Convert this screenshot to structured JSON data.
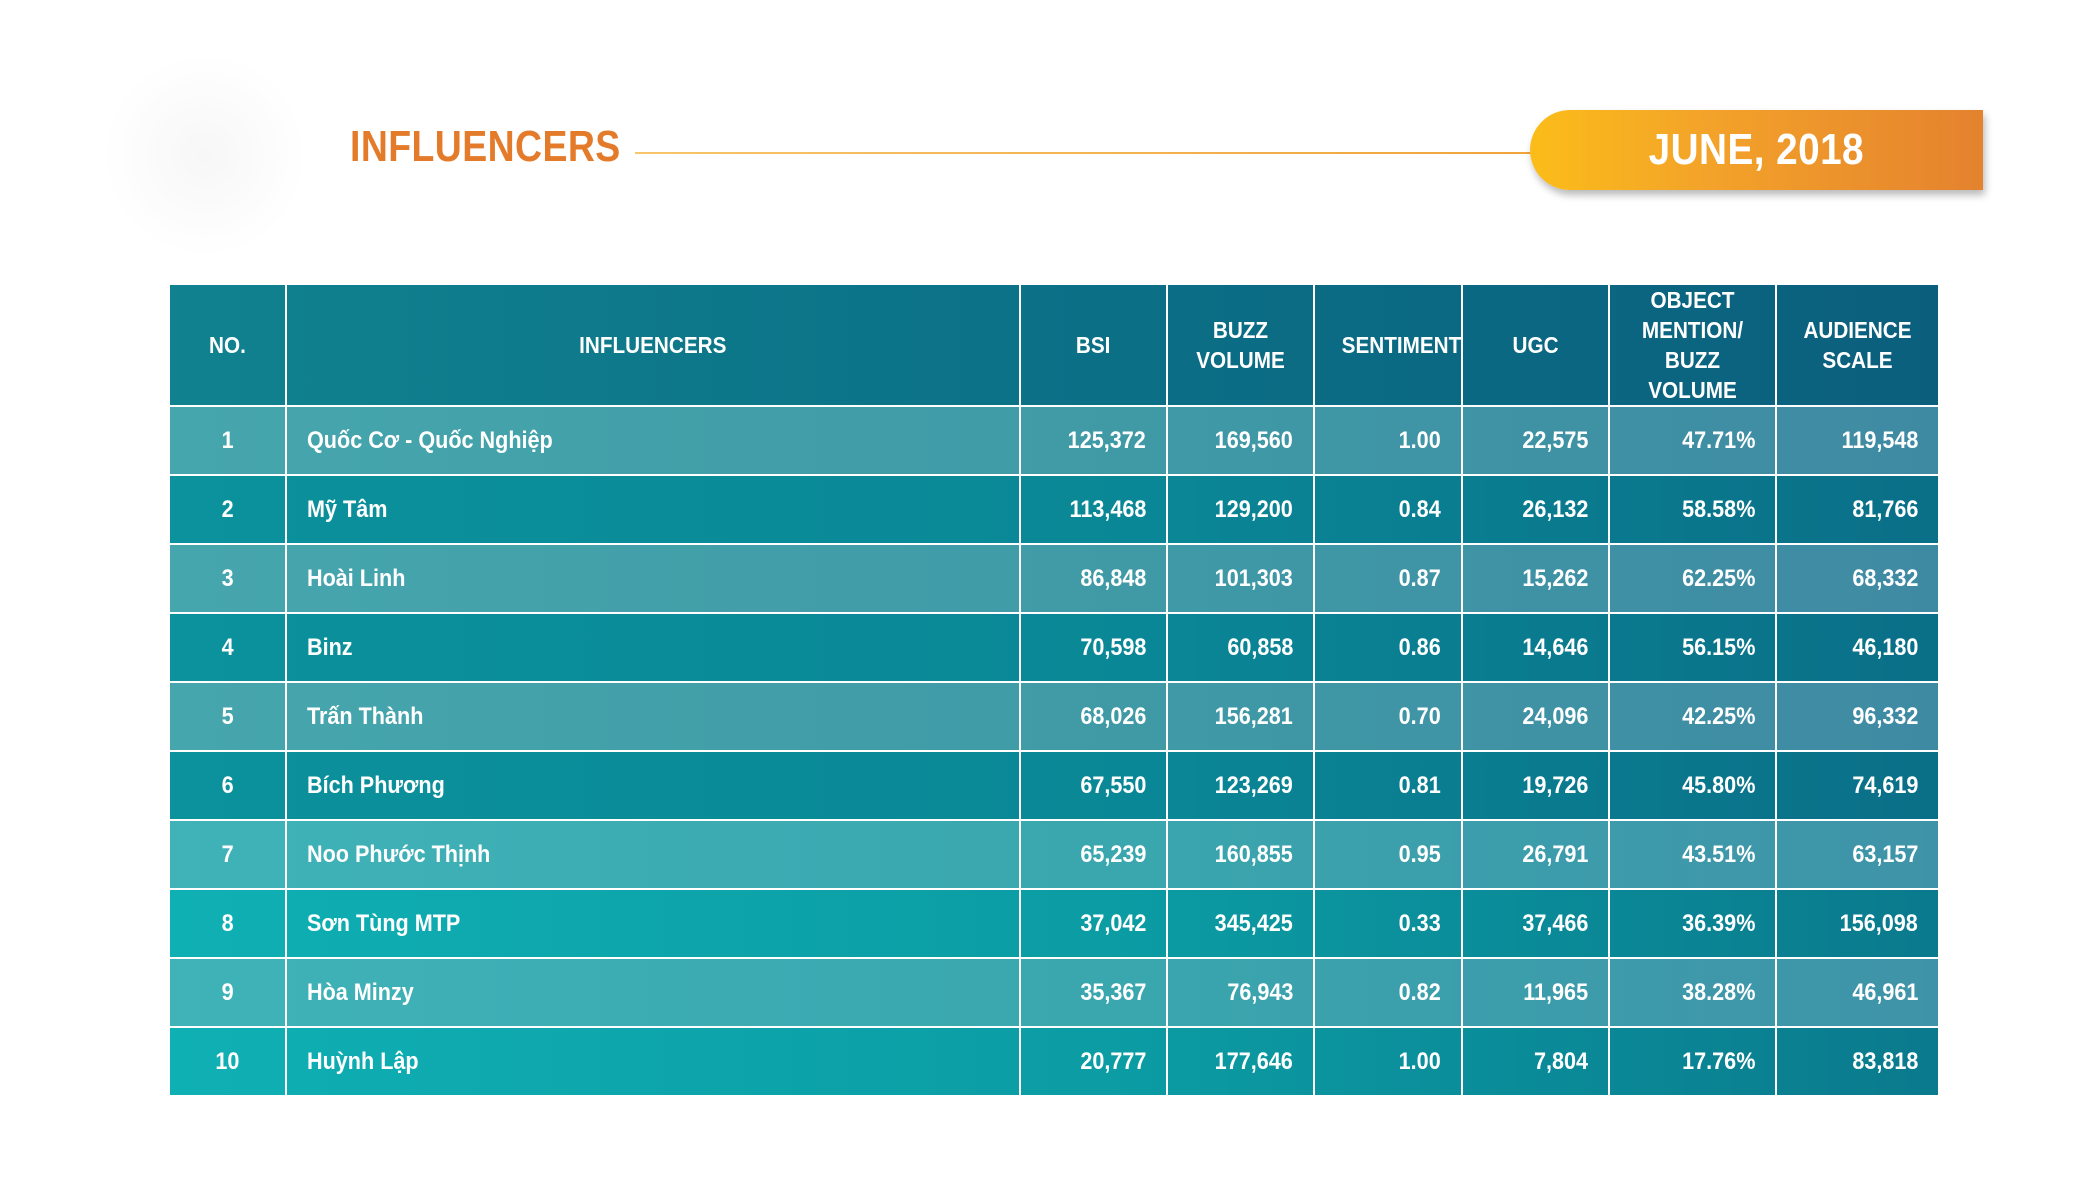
{
  "header": {
    "title": "INFLUENCERS",
    "date": "JUNE, 2018"
  },
  "colors": {
    "title": "#e37b2a",
    "badge_start": "#fbbd19",
    "badge_end": "#e4822e",
    "header_row": "#0b6f86",
    "row_light": "#3f9aa6",
    "row_dark": "#0a8796"
  },
  "table": {
    "columns": [
      "NO.",
      "INFLUENCERS",
      "BSI",
      "BUZZ VOLUME",
      "SENTIMENT",
      "UGC",
      "OBJECT MENTION/ BUZZ VOLUME",
      "AUDIENCE SCALE"
    ],
    "rows": [
      {
        "no": "1",
        "name": "Quốc Cơ - Quốc Nghiệp",
        "bsi": "125,372",
        "buzz": "169,560",
        "sentiment": "1.00",
        "ugc": "22,575",
        "ratio": "47.71%",
        "audience": "119,548"
      },
      {
        "no": "2",
        "name": "Mỹ Tâm",
        "bsi": "113,468",
        "buzz": "129,200",
        "sentiment": "0.84",
        "ugc": "26,132",
        "ratio": "58.58%",
        "audience": "81,766"
      },
      {
        "no": "3",
        "name": "Hoài Linh",
        "bsi": "86,848",
        "buzz": "101,303",
        "sentiment": "0.87",
        "ugc": "15,262",
        "ratio": "62.25%",
        "audience": "68,332"
      },
      {
        "no": "4",
        "name": "Binz",
        "bsi": "70,598",
        "buzz": "60,858",
        "sentiment": "0.86",
        "ugc": "14,646",
        "ratio": "56.15%",
        "audience": "46,180"
      },
      {
        "no": "5",
        "name": "Trấn Thành",
        "bsi": "68,026",
        "buzz": "156,281",
        "sentiment": "0.70",
        "ugc": "24,096",
        "ratio": "42.25%",
        "audience": "96,332"
      },
      {
        "no": "6",
        "name": "Bích Phương",
        "bsi": "67,550",
        "buzz": "123,269",
        "sentiment": "0.81",
        "ugc": "19,726",
        "ratio": "45.80%",
        "audience": "74,619"
      },
      {
        "no": "7",
        "name": "Noo Phước Thịnh",
        "bsi": "65,239",
        "buzz": "160,855",
        "sentiment": "0.95",
        "ugc": "26,791",
        "ratio": "43.51%",
        "audience": "63,157"
      },
      {
        "no": "8",
        "name": "Sơn Tùng MTP",
        "bsi": "37,042",
        "buzz": "345,425",
        "sentiment": "0.33",
        "ugc": "37,466",
        "ratio": "36.39%",
        "audience": "156,098"
      },
      {
        "no": "9",
        "name": "Hòa Minzy",
        "bsi": "35,367",
        "buzz": "76,943",
        "sentiment": "0.82",
        "ugc": "11,965",
        "ratio": "38.28%",
        "audience": "46,961"
      },
      {
        "no": "10",
        "name": "Huỳnh Lập",
        "bsi": "20,777",
        "buzz": "177,646",
        "sentiment": "1.00",
        "ugc": "7,804",
        "ratio": "17.76%",
        "audience": "83,818"
      }
    ]
  }
}
